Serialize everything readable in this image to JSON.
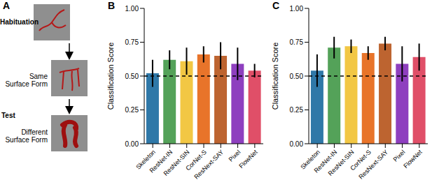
{
  "panel": {
    "label": "A",
    "habituation": "Habituation",
    "same": "Same Surface Form",
    "test": "Test",
    "different": "Different Surface Form"
  },
  "chart_data": [
    {
      "type": "bar",
      "title": "B",
      "y_label": "Classification Score",
      "categories": [
        "Skeleton",
        "ResNet-IN",
        "ResNet-SIN",
        "CorNet-S",
        "ResNext-SAY",
        "Pixel",
        "FlowNet"
      ],
      "values": [
        0.52,
        0.62,
        0.61,
        0.66,
        0.65,
        0.59,
        0.54
      ],
      "error": [
        0.1,
        0.07,
        0.1,
        0.06,
        0.1,
        0.12,
        0.05
      ],
      "chance": 0.5,
      "colors": [
        "#2f78a8",
        "#54a259",
        "#f2c744",
        "#e8742a",
        "#bd6430",
        "#8e3fbf",
        "#e04f68"
      ],
      "ylim": [
        0,
        1
      ],
      "yticks": [
        {
          "value": 0,
          "label": "0.00"
        },
        {
          "value": 0.25,
          "label": "0.25"
        },
        {
          "value": 0.5,
          "label": "0.50"
        },
        {
          "value": 0.75,
          "label": "0.75"
        },
        {
          "value": 1,
          "label": "1.00"
        }
      ]
    },
    {
      "type": "bar",
      "title": "C",
      "y_label": "Classification Score",
      "categories": [
        "Skeleton",
        "ResNet-IN",
        "ResNet-SIN",
        "CorNet-S",
        "ResNext-SAY",
        "Pixel",
        "FlowNet"
      ],
      "values": [
        0.54,
        0.71,
        0.72,
        0.67,
        0.74,
        0.59,
        0.64
      ],
      "error": [
        0.12,
        0.08,
        0.05,
        0.05,
        0.05,
        0.13,
        0.1
      ],
      "chance": 0.5,
      "colors": [
        "#2f78a8",
        "#54a259",
        "#f2c744",
        "#e8742a",
        "#bd6430",
        "#8e3fbf",
        "#e04f68"
      ],
      "ylim": [
        0,
        1
      ],
      "yticks": [
        {
          "value": 0,
          "label": "0.00"
        },
        {
          "value": 0.25,
          "label": "0.25"
        },
        {
          "value": 0.5,
          "label": "0.50"
        },
        {
          "value": 0.75,
          "label": "0.75"
        },
        {
          "value": 1,
          "label": "1.00"
        }
      ]
    }
  ]
}
